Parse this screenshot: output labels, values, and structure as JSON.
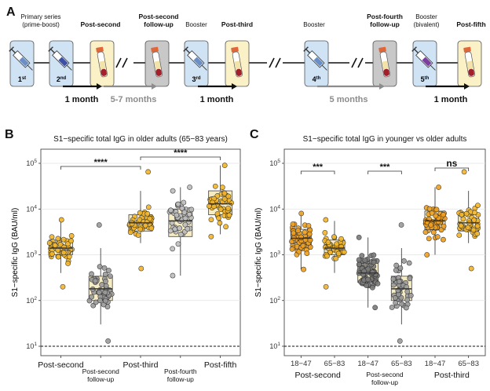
{
  "panel_a": {
    "panel_letter": "A",
    "events": [
      {
        "label": "Primary series\n(prime-boost)",
        "bold": false
      },
      {
        "label": "Post-second",
        "bold": true
      },
      {
        "label": "Post-second\nfollow-up",
        "bold": true
      },
      {
        "label": "Booster",
        "bold": false
      },
      {
        "label": "Post-third",
        "bold": true
      },
      {
        "label": "Booster",
        "bold": false
      },
      {
        "label": "Post-fourth\nfollow-up",
        "bold": true
      },
      {
        "label": "Booster\n(bivalent)",
        "bold": false
      },
      {
        "label": "Post-fifth",
        "bold": true
      }
    ],
    "doses": [
      "1st",
      "2nd",
      "3rd",
      "4th",
      "5th"
    ],
    "intervals": [
      {
        "label": "1 month",
        "color": "#111111"
      },
      {
        "label": "5-7 months",
        "color": "#8c8c8c"
      },
      {
        "label": "1 month",
        "color": "#111111"
      },
      {
        "label": "5 months",
        "color": "#8c8c8c"
      },
      {
        "label": "1 month",
        "color": "#111111"
      }
    ],
    "colors": {
      "syringe_box": "#cfe3f5",
      "tube_box_light": "#fbf1c6",
      "tube_box_grey": "#c8c8c8",
      "blood": "#a3202a",
      "tube_cap": "#e0673a"
    }
  },
  "chart_data": [
    {
      "panel_letter": "B",
      "type": "box",
      "title": "S1−specific total IgG in older adults (65−83 years)",
      "ylabel": "S1−specific IgG (BAU/ml)",
      "y_scale": "log10",
      "ylim": [
        10,
        100000
      ],
      "y_ticks": [
        {
          "v": 10,
          "t": "10",
          "e": "1"
        },
        {
          "v": 100,
          "t": "10",
          "e": "2"
        },
        {
          "v": 1000,
          "t": "10",
          "e": "3"
        },
        {
          "v": 10000,
          "t": "10",
          "e": "4"
        },
        {
          "v": 100000,
          "t": "10",
          "e": "5"
        }
      ],
      "reference_line": 10,
      "grid": true,
      "categories": [
        "Post-second",
        "Post-second\nfollow-up",
        "Post-third",
        "Post-fourth\nfollow-up",
        "Post-fifth"
      ],
      "series": [
        {
          "category": "Post-second",
          "color": "#f2b52a",
          "box": [
            400,
            1000,
            1400,
            2100,
            5500
          ],
          "points_range": [
            200,
            5800
          ],
          "n": 48
        },
        {
          "category": "Post-second\nfollow-up",
          "color": "#9a9a9a",
          "box": [
            30,
            100,
            180,
            340,
            1400
          ],
          "points_range": [
            13,
            4500
          ],
          "n": 48
        },
        {
          "category": "Post-third",
          "color": "#f2b52a",
          "box": [
            1800,
            3300,
            5000,
            7500,
            25000
          ],
          "points_range": [
            500,
            65000
          ],
          "n": 48
        },
        {
          "category": "Post-fourth\nfollow-up",
          "color": "#bdbdbd",
          "box": [
            350,
            2500,
            5500,
            10000,
            30000
          ],
          "points_range": [
            350,
            30000
          ],
          "n": 48
        },
        {
          "category": "Post-fifth",
          "color": "#f2b52a",
          "box": [
            2800,
            7500,
            13000,
            25000,
            90000
          ],
          "points_range": [
            2500,
            90000
          ],
          "n": 48
        }
      ],
      "significance": [
        {
          "from": 0,
          "to": 2,
          "label": "****"
        },
        {
          "from": 2,
          "to": 4,
          "label": "****"
        }
      ]
    },
    {
      "panel_letter": "C",
      "type": "box",
      "title": "S1−specific total IgG in younger vs older adults",
      "ylabel": "S1−specific IgG (BAU/ml)",
      "y_scale": "log10",
      "ylim": [
        10,
        100000
      ],
      "y_ticks": [
        {
          "v": 10,
          "t": "10",
          "e": "1"
        },
        {
          "v": 100,
          "t": "10",
          "e": "2"
        },
        {
          "v": 1000,
          "t": "10",
          "e": "3"
        },
        {
          "v": 10000,
          "t": "10",
          "e": "4"
        },
        {
          "v": 100000,
          "t": "10",
          "e": "5"
        }
      ],
      "reference_line": 10,
      "grid": true,
      "categories": [
        "18−47",
        "65−83",
        "18−47",
        "65−83",
        "18−47",
        "65−83"
      ],
      "groups": [
        {
          "label": "Post-second",
          "from": 0,
          "to": 1
        },
        {
          "label": "Post-second\nfollow-up",
          "from": 2,
          "to": 3
        },
        {
          "label": "Post-third",
          "from": 4,
          "to": 5
        }
      ],
      "series": [
        {
          "category": "18−47",
          "group": "Post-second",
          "color": "#f0a020",
          "box": [
            480,
            1500,
            2300,
            3600,
            8000
          ],
          "points_range": [
            480,
            8000
          ],
          "n": 70
        },
        {
          "category": "65−83",
          "group": "Post-second",
          "color": "#f2b52a",
          "box": [
            400,
            1000,
            1400,
            2100,
            5500
          ],
          "points_range": [
            200,
            5800
          ],
          "n": 48
        },
        {
          "category": "18−47",
          "group": "Post-second\nfollow-up",
          "color": "#7a7a7a",
          "box": [
            70,
            250,
            400,
            650,
            2400
          ],
          "points_range": [
            70,
            2400
          ],
          "n": 70
        },
        {
          "category": "65−83",
          "group": "Post-second\nfollow-up",
          "color": "#9a9a9a",
          "box": [
            30,
            100,
            180,
            340,
            1400
          ],
          "points_range": [
            13,
            4500
          ],
          "n": 48
        },
        {
          "category": "18−47",
          "group": "Post-third",
          "color": "#f0a020",
          "box": [
            1000,
            3500,
            5500,
            9000,
            30000
          ],
          "points_range": [
            1000,
            30000
          ],
          "n": 60
        },
        {
          "category": "65−83",
          "group": "Post-third",
          "color": "#f2b52a",
          "box": [
            1800,
            3300,
            5000,
            7500,
            25000
          ],
          "points_range": [
            500,
            65000
          ],
          "n": 48
        }
      ],
      "significance": [
        {
          "from": 0,
          "to": 1,
          "label": "***"
        },
        {
          "from": 2,
          "to": 3,
          "label": "***"
        },
        {
          "from": 4,
          "to": 5,
          "label": "ns"
        }
      ]
    }
  ]
}
